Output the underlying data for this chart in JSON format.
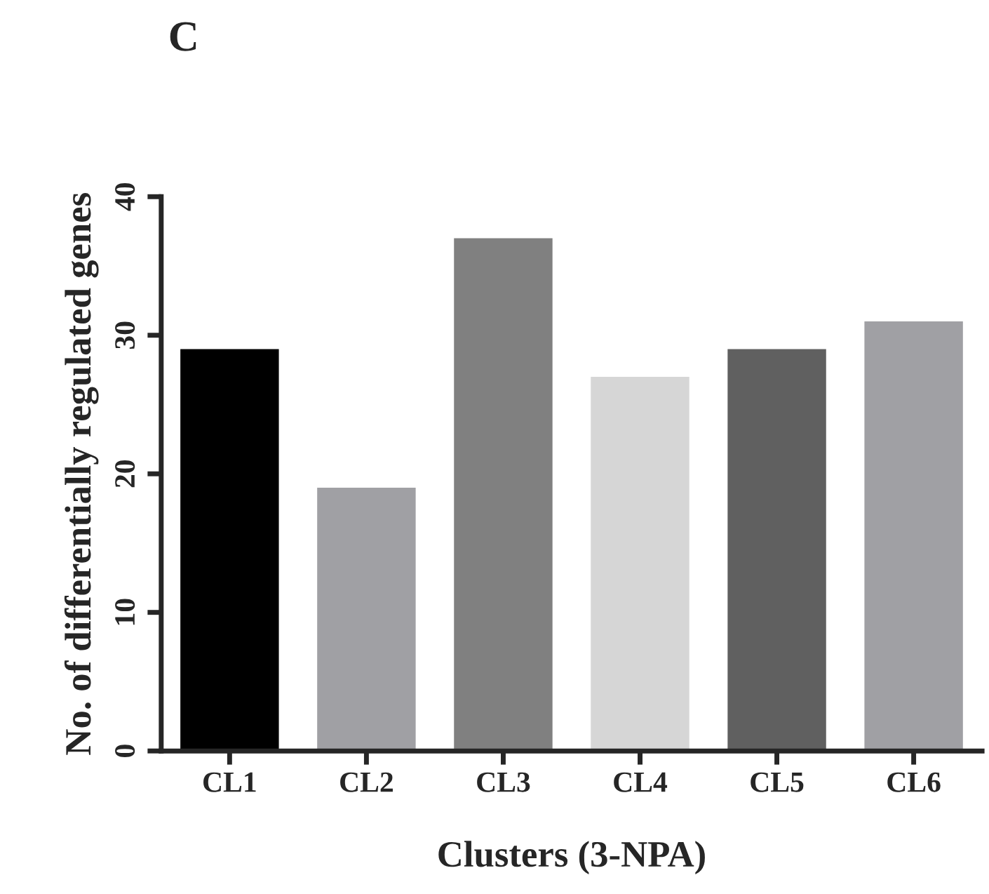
{
  "chart_data": {
    "type": "bar",
    "title": "C",
    "xlabel": "Clusters (3-NPA)",
    "ylabel": "No. of differentially regulated genes",
    "categories": [
      "CL1",
      "CL2",
      "CL3",
      "CL4",
      "CL5",
      "CL6"
    ],
    "values": [
      29,
      19,
      37,
      27,
      29,
      31
    ],
    "colors": [
      "#000000",
      "#a0a0a4",
      "#808080",
      "#d6d6d6",
      "#606060",
      "#a0a0a4"
    ],
    "ylim": [
      0,
      40
    ],
    "yticks": [
      0,
      10,
      20,
      30,
      40
    ]
  }
}
